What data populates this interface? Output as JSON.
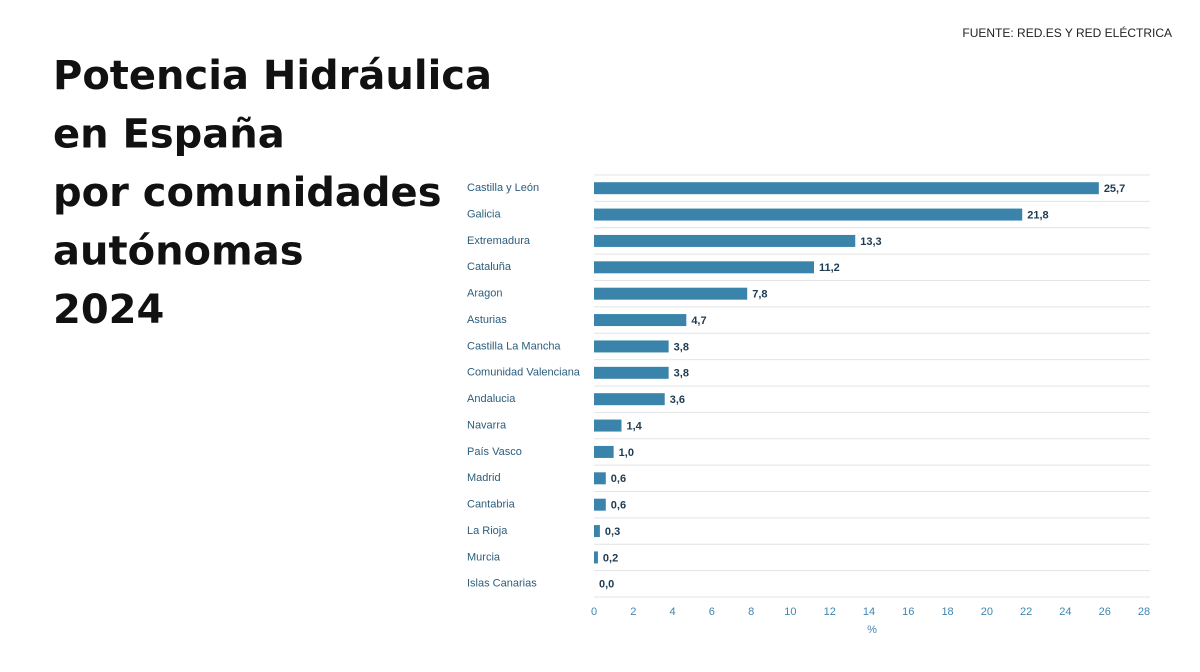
{
  "chart_data": {
    "type": "bar",
    "orientation": "horizontal",
    "title": [
      "Potencia Hidráulica",
      "en España",
      "por comunidades",
      "autónomas",
      "2024"
    ],
    "source": "FUENTE: RED.ES Y RED ELÉCTRICA",
    "x_label": "%",
    "categories": [
      "Castilla y León",
      "Galicia",
      "Extremadura",
      "Cataluña",
      "Aragon",
      "Asturias",
      "Castilla La Mancha",
      "Comunidad Valenciana",
      "Andalucia",
      "Navarra",
      "País Vasco",
      "Madrid",
      "Cantabria",
      "La Rioja",
      "Murcia",
      "Islas Canarias"
    ],
    "values": [
      25.7,
      21.8,
      13.3,
      11.2,
      7.8,
      4.7,
      3.8,
      3.8,
      3.6,
      1.4,
      1.0,
      0.6,
      0.6,
      0.3,
      0.2,
      0.0
    ],
    "value_labels": [
      "25,7",
      "21,8",
      "13,3",
      "11,2",
      "7,8",
      "4,7",
      "3,8",
      "3,8",
      "3,6",
      "1,4",
      "1,0",
      "0,6",
      "0,6",
      "0,3",
      "0,2",
      "0,0"
    ],
    "color": "#3a84ac",
    "xlim": [
      0,
      28
    ],
    "xticks": [
      0,
      2,
      4,
      6,
      8,
      10,
      12,
      14,
      16,
      18,
      20,
      22,
      24,
      26,
      28
    ]
  }
}
